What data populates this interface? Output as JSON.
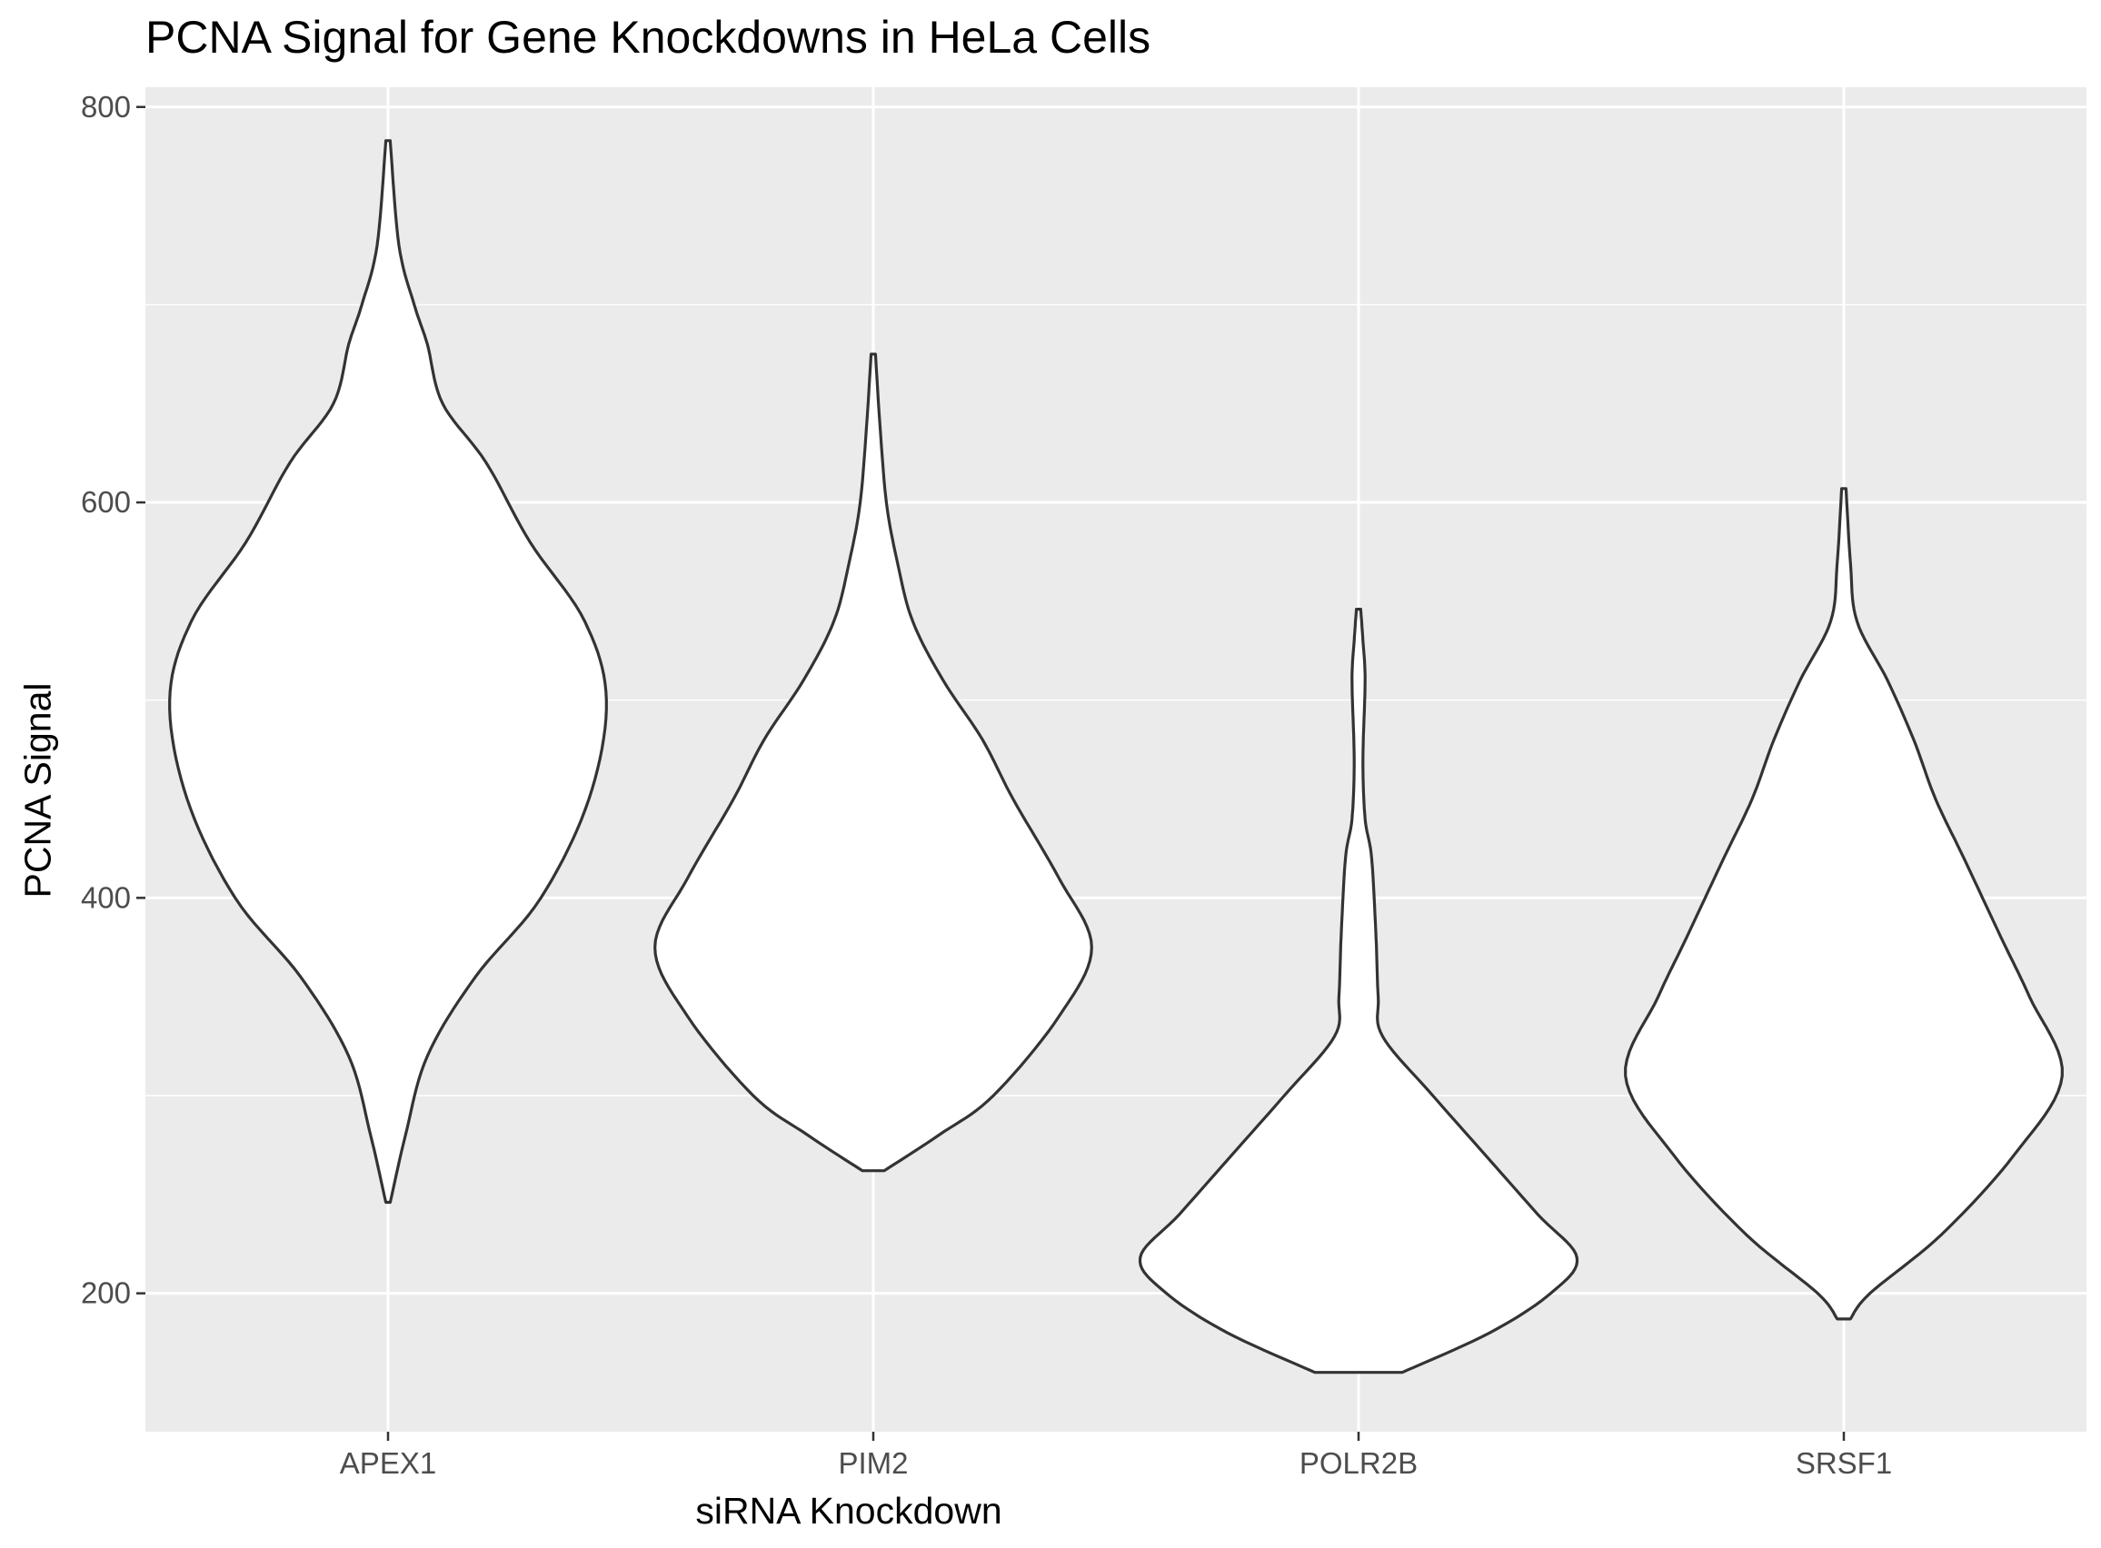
{
  "chart_data": {
    "type": "violin",
    "title": "PCNA Signal for Gene Knockdowns in HeLa Cells",
    "xlabel": "siRNA Knockdown",
    "ylabel": "PCNA Signal",
    "ylim": [
      130,
      810
    ],
    "yticks": [
      200,
      400,
      600,
      800
    ],
    "grid": true,
    "categories": [
      "APEX1",
      "PIM2",
      "POLR2B",
      "SRSF1"
    ],
    "series": [
      {
        "category": "APEX1",
        "range": [
          246,
          783
        ],
        "density_profile": [
          [
            246,
            0.01
          ],
          [
            280,
            0.08
          ],
          [
            320,
            0.18
          ],
          [
            360,
            0.4
          ],
          [
            400,
            0.7
          ],
          [
            450,
            0.92
          ],
          [
            500,
            1.0
          ],
          [
            540,
            0.9
          ],
          [
            580,
            0.65
          ],
          [
            620,
            0.45
          ],
          [
            650,
            0.25
          ],
          [
            680,
            0.18
          ],
          [
            700,
            0.12
          ],
          [
            730,
            0.05
          ],
          [
            783,
            0.01
          ]
        ]
      },
      {
        "category": "PIM2",
        "range": [
          262,
          675
        ],
        "density_profile": [
          [
            262,
            0.05
          ],
          [
            280,
            0.3
          ],
          [
            300,
            0.55
          ],
          [
            340,
            0.85
          ],
          [
            375,
            1.0
          ],
          [
            410,
            0.85
          ],
          [
            450,
            0.64
          ],
          [
            480,
            0.5
          ],
          [
            510,
            0.32
          ],
          [
            540,
            0.18
          ],
          [
            570,
            0.11
          ],
          [
            600,
            0.06
          ],
          [
            640,
            0.03
          ],
          [
            675,
            0.01
          ]
        ]
      },
      {
        "category": "POLR2B",
        "range": [
          160,
          546
        ],
        "density_profile": [
          [
            160,
            0.2
          ],
          [
            180,
            0.6
          ],
          [
            200,
            0.88
          ],
          [
            218,
            1.0
          ],
          [
            240,
            0.82
          ],
          [
            270,
            0.58
          ],
          [
            300,
            0.34
          ],
          [
            330,
            0.11
          ],
          [
            350,
            0.09
          ],
          [
            380,
            0.08
          ],
          [
            420,
            0.06
          ],
          [
            440,
            0.03
          ],
          [
            470,
            0.02
          ],
          [
            510,
            0.03
          ],
          [
            530,
            0.02
          ],
          [
            546,
            0.01
          ]
        ]
      },
      {
        "category": "SRSF1",
        "range": [
          187,
          607
        ],
        "density_profile": [
          [
            187,
            0.03
          ],
          [
            200,
            0.12
          ],
          [
            230,
            0.45
          ],
          [
            270,
            0.78
          ],
          [
            310,
            1.0
          ],
          [
            350,
            0.85
          ],
          [
            380,
            0.72
          ],
          [
            420,
            0.55
          ],
          [
            450,
            0.42
          ],
          [
            480,
            0.32
          ],
          [
            510,
            0.2
          ],
          [
            540,
            0.06
          ],
          [
            570,
            0.03
          ],
          [
            607,
            0.01
          ]
        ]
      }
    ],
    "colors": {
      "panel_background": "#ebebeb",
      "grid": "#ffffff",
      "violin_fill": "#ffffff",
      "violin_outline": "#333333",
      "tick_text": "#4d4d4d"
    }
  }
}
